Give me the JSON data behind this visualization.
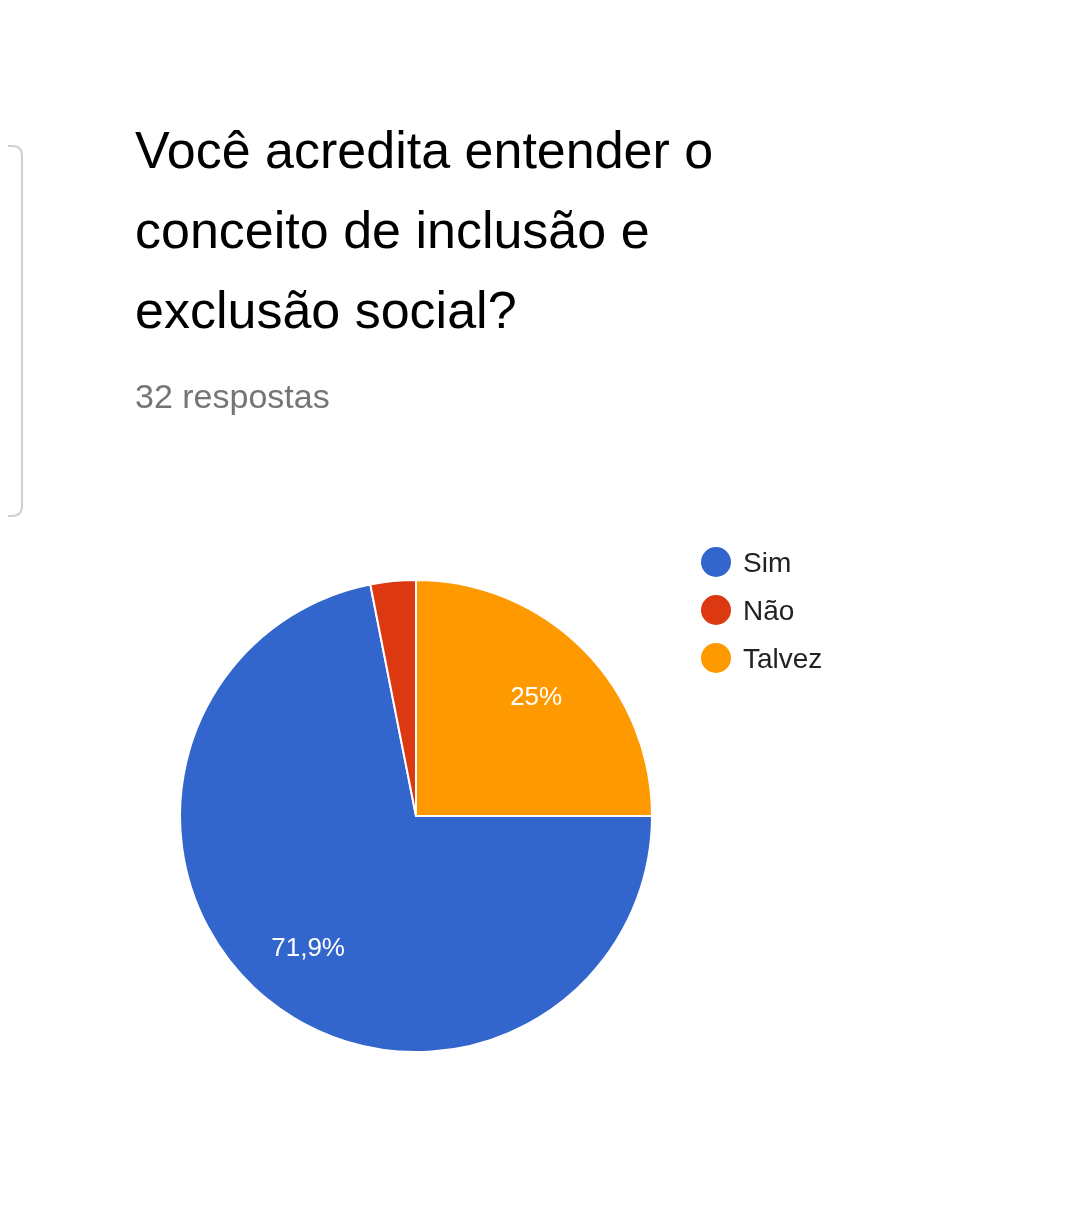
{
  "chart_data": {
    "type": "pie",
    "title": "Você acredita entender o conceito de inclusão e exclusão social?",
    "subtitle": "32 respostas",
    "categories": [
      "Sim",
      "Não",
      "Talvez"
    ],
    "values": [
      71.9,
      3.1,
      25
    ],
    "colors": [
      "#3366cc",
      "#dc3912",
      "#ff9900"
    ],
    "value_labels": [
      "71,9%",
      null,
      "25%"
    ],
    "legend": "right"
  }
}
